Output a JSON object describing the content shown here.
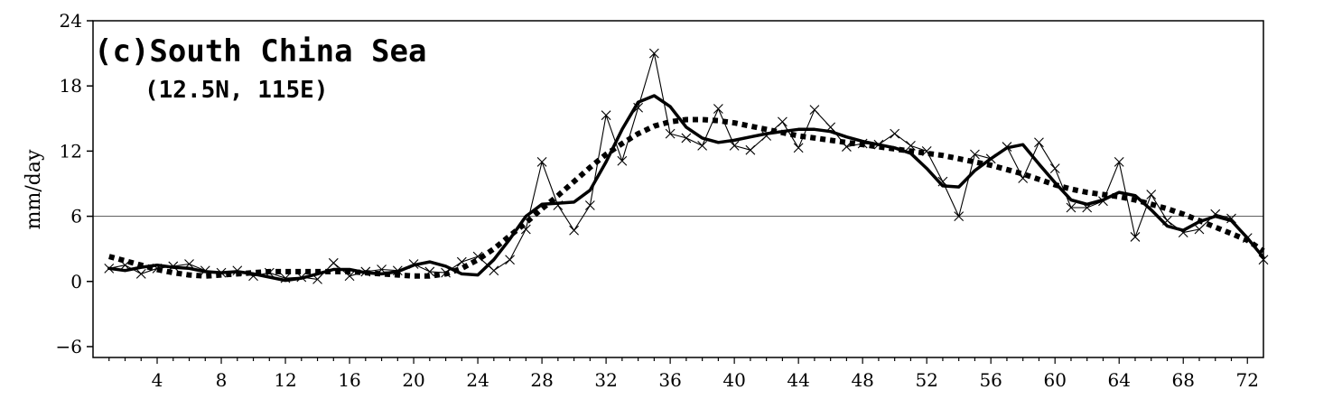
{
  "chart_data": {
    "type": "line",
    "title": "(c)South China Sea",
    "subtitle": "(12.5N, 115E)",
    "xlabel": "",
    "ylabel": "mm/day",
    "xlim": [
      0,
      73
    ],
    "ylim": [
      -7,
      24
    ],
    "xticks": [
      4,
      8,
      12,
      16,
      20,
      24,
      28,
      32,
      36,
      40,
      44,
      48,
      52,
      56,
      60,
      64,
      68,
      72
    ],
    "xtick_labels": [
      "4",
      "8",
      "12",
      "16",
      "20",
      "24",
      "28",
      "32",
      "36",
      "40",
      "44",
      "48",
      "52",
      "56",
      "60",
      "64",
      "68",
      "72"
    ],
    "yticks": [
      -6,
      0,
      6,
      12,
      18,
      24
    ],
    "ytick_labels": [
      "−6",
      "0",
      "6",
      "12",
      "18",
      "24"
    ],
    "reference_line_y": 6,
    "grid": false,
    "legend": "none",
    "series": [
      {
        "style": "thin-with-x-markers",
        "x": [
          1,
          2,
          3,
          4,
          5,
          6,
          7,
          8,
          9,
          10,
          11,
          12,
          13,
          14,
          15,
          16,
          17,
          18,
          19,
          20,
          21,
          22,
          23,
          24,
          25,
          26,
          27,
          28,
          29,
          30,
          31,
          32,
          33,
          34,
          35,
          36,
          37,
          38,
          39,
          40,
          41,
          42,
          43,
          44,
          45,
          46,
          47,
          48,
          49,
          50,
          51,
          52,
          53,
          54,
          55,
          56,
          57,
          58,
          59,
          60,
          61,
          62,
          63,
          64,
          65,
          66,
          67,
          68,
          69,
          70,
          71,
          72,
          73
        ],
        "values": [
          1.2,
          1.5,
          0.7,
          1.2,
          1.4,
          1.6,
          1.0,
          0.8,
          1.0,
          0.5,
          0.8,
          0.3,
          0.4,
          0.2,
          1.7,
          0.5,
          0.9,
          1.1,
          1.0,
          1.6,
          0.9,
          0.8,
          1.8,
          2.3,
          1.0,
          2.0,
          4.8,
          11.0,
          7.0,
          4.7,
          7.0,
          15.3,
          11.1,
          16.0,
          21.0,
          13.6,
          13.2,
          12.5,
          15.9,
          12.5,
          12.1,
          13.4,
          14.7,
          12.3,
          15.8,
          14.2,
          12.4,
          12.7,
          12.6,
          13.6,
          12.5,
          12.0,
          9.2,
          6.0,
          11.7,
          11.3,
          12.4,
          9.5,
          12.8,
          10.4,
          6.8,
          6.8,
          7.4,
          11.0,
          4.1,
          8.0,
          5.6,
          4.5,
          4.8,
          6.2,
          5.8,
          4.0,
          2.0
        ]
      },
      {
        "style": "thick-solid",
        "x": [
          1,
          2,
          3,
          4,
          5,
          6,
          7,
          8,
          9,
          10,
          11,
          12,
          13,
          14,
          15,
          16,
          17,
          18,
          19,
          20,
          21,
          22,
          23,
          24,
          25,
          26,
          27,
          28,
          29,
          30,
          31,
          32,
          33,
          34,
          35,
          36,
          37,
          38,
          39,
          40,
          41,
          42,
          43,
          44,
          45,
          46,
          47,
          48,
          49,
          50,
          51,
          52,
          53,
          54,
          55,
          56,
          57,
          58,
          59,
          60,
          61,
          62,
          63,
          64,
          65,
          66,
          67,
          68,
          69,
          70,
          71,
          72,
          73
        ],
        "values": [
          1.2,
          1.0,
          1.3,
          1.5,
          1.3,
          1.2,
          0.9,
          0.8,
          0.9,
          0.7,
          0.4,
          0.1,
          0.3,
          0.7,
          1.1,
          1.1,
          0.8,
          0.7,
          0.9,
          1.5,
          1.8,
          1.4,
          0.7,
          0.6,
          2.0,
          3.9,
          6.0,
          7.1,
          7.2,
          7.3,
          8.4,
          11.0,
          14.0,
          16.5,
          17.1,
          16.1,
          14.2,
          13.2,
          12.8,
          13.0,
          13.3,
          13.6,
          13.8,
          14.0,
          14.0,
          13.8,
          13.3,
          12.9,
          12.6,
          12.3,
          11.8,
          10.4,
          8.8,
          8.7,
          10.2,
          11.3,
          12.3,
          12.6,
          10.8,
          9.1,
          7.5,
          7.1,
          7.5,
          8.2,
          7.9,
          6.6,
          5.1,
          4.7,
          5.5,
          6.0,
          5.6,
          4.0,
          2.2
        ]
      },
      {
        "style": "thick-dotted",
        "x": [
          1,
          2,
          3,
          4,
          5,
          6,
          7,
          8,
          9,
          10,
          11,
          12,
          13,
          14,
          15,
          16,
          17,
          18,
          19,
          20,
          21,
          22,
          23,
          24,
          25,
          26,
          27,
          28,
          29,
          30,
          31,
          32,
          33,
          34,
          35,
          36,
          37,
          38,
          39,
          40,
          41,
          42,
          43,
          44,
          45,
          46,
          47,
          48,
          49,
          50,
          51,
          52,
          53,
          54,
          55,
          56,
          57,
          58,
          59,
          60,
          61,
          62,
          63,
          64,
          65,
          66,
          67,
          68,
          69,
          70,
          71,
          72,
          73
        ],
        "values": [
          2.3,
          1.9,
          1.5,
          1.1,
          0.8,
          0.6,
          0.5,
          0.6,
          0.7,
          0.8,
          0.9,
          0.9,
          0.9,
          0.9,
          0.9,
          0.9,
          0.8,
          0.7,
          0.6,
          0.5,
          0.5,
          0.7,
          1.2,
          2.0,
          3.0,
          4.2,
          5.4,
          6.7,
          7.9,
          9.2,
          10.5,
          11.7,
          12.7,
          13.6,
          14.3,
          14.7,
          14.9,
          14.9,
          14.8,
          14.6,
          14.3,
          14.0,
          13.7,
          13.4,
          13.2,
          13.0,
          12.8,
          12.6,
          12.4,
          12.2,
          12.0,
          11.8,
          11.6,
          11.3,
          11.0,
          10.7,
          10.3,
          9.9,
          9.4,
          8.9,
          8.5,
          8.2,
          8.0,
          7.8,
          7.5,
          7.1,
          6.7,
          6.2,
          5.6,
          5.0,
          4.4,
          3.8,
          2.8
        ]
      }
    ]
  }
}
